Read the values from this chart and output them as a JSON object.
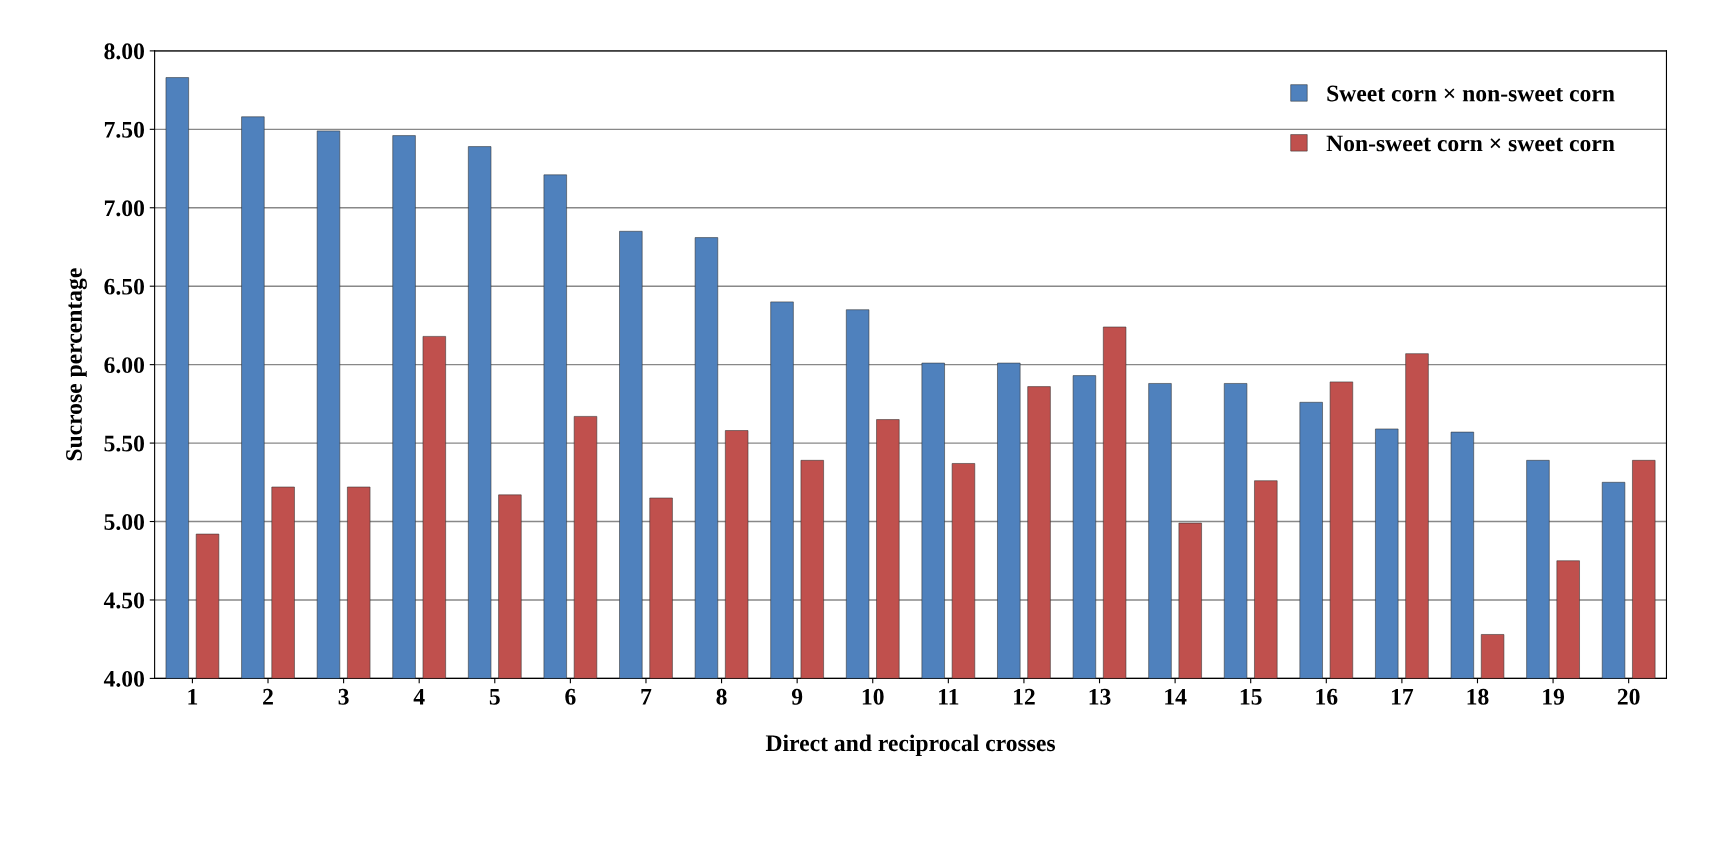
{
  "chart_data": {
    "type": "bar",
    "xlabel": "Direct and reciprocal crosses",
    "ylabel": "Sucrose percentage",
    "categories": [
      "1",
      "2",
      "3",
      "4",
      "5",
      "6",
      "7",
      "8",
      "9",
      "10",
      "11",
      "12",
      "13",
      "14",
      "15",
      "16",
      "17",
      "18",
      "19",
      "20"
    ],
    "series": [
      {
        "name": "Sweet corn × non-sweet corn",
        "color": "#4f81bd",
        "values": [
          7.83,
          7.58,
          7.49,
          7.46,
          7.39,
          7.21,
          6.85,
          6.81,
          6.4,
          6.35,
          6.01,
          6.01,
          5.93,
          5.88,
          5.88,
          5.76,
          5.59,
          5.57,
          5.39,
          5.25
        ]
      },
      {
        "name": "Non-sweet corn × sweet corn",
        "color": "#c0504d",
        "values": [
          4.92,
          5.22,
          5.22,
          6.18,
          5.17,
          5.67,
          5.15,
          5.58,
          5.39,
          5.65,
          5.37,
          5.86,
          6.24,
          4.99,
          5.26,
          5.89,
          6.07,
          4.28,
          4.75,
          5.39
        ]
      }
    ],
    "ylim": [
      4,
      8
    ],
    "yticks": [
      {
        "value": 4,
        "label": "4.00"
      },
      {
        "value": 4.5,
        "label": "4.50"
      },
      {
        "value": 5,
        "label": "5.00"
      },
      {
        "value": 5.5,
        "label": "5.50"
      },
      {
        "value": 6,
        "label": "6.00"
      },
      {
        "value": 6.5,
        "label": "6.50"
      },
      {
        "value": 7,
        "label": "7.00"
      },
      {
        "value": 7.5,
        "label": "7.50"
      },
      {
        "value": 8,
        "label": "8.00"
      }
    ],
    "grid": "y",
    "legend": "top right"
  }
}
